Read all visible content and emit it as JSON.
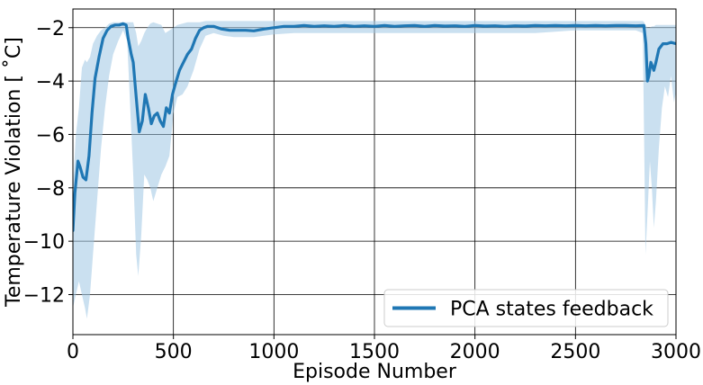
{
  "chart_data": {
    "type": "line",
    "title": "",
    "xlabel": "Episode Number",
    "ylabel": "Temperature Violation [$^\\circ$C]",
    "ylabel_display": "Temperature Violation [ ˚C]",
    "xlim": [
      0,
      3000
    ],
    "ylim": [
      -13.5,
      -1.3
    ],
    "x_ticks": [
      0,
      500,
      1000,
      1500,
      2000,
      2500,
      3000
    ],
    "y_ticks": [
      -12,
      -10,
      -8,
      -6,
      -4,
      -2
    ],
    "x_tick_labels": [
      "0",
      "500",
      "1000",
      "1500",
      "2000",
      "2500",
      "3000"
    ],
    "y_tick_labels": [
      "−12",
      "−10",
      "−8",
      "−6",
      "−4",
      "−2"
    ],
    "grid": true,
    "legend_position": "lower-right",
    "series": [
      {
        "name": "PCA states feedback",
        "color": "#1f77b4",
        "band_color": "#9ec7e4",
        "points": [
          [
            0,
            -9.6
          ],
          [
            10,
            -8.2
          ],
          [
            25,
            -7.0
          ],
          [
            35,
            -7.2
          ],
          [
            50,
            -7.6
          ],
          [
            65,
            -7.7
          ],
          [
            80,
            -6.8
          ],
          [
            95,
            -5.2
          ],
          [
            110,
            -3.9
          ],
          [
            130,
            -3.1
          ],
          [
            150,
            -2.4
          ],
          [
            170,
            -2.1
          ],
          [
            190,
            -1.95
          ],
          [
            210,
            -1.9
          ],
          [
            230,
            -1.9
          ],
          [
            250,
            -1.85
          ],
          [
            265,
            -1.9
          ],
          [
            275,
            -2.4
          ],
          [
            290,
            -3.0
          ],
          [
            300,
            -3.3
          ],
          [
            315,
            -4.6
          ],
          [
            330,
            -5.9
          ],
          [
            345,
            -5.5
          ],
          [
            360,
            -4.5
          ],
          [
            375,
            -5.0
          ],
          [
            390,
            -5.6
          ],
          [
            405,
            -5.3
          ],
          [
            420,
            -5.2
          ],
          [
            435,
            -5.5
          ],
          [
            450,
            -5.7
          ],
          [
            465,
            -5.0
          ],
          [
            480,
            -5.2
          ],
          [
            495,
            -4.5
          ],
          [
            510,
            -4.1
          ],
          [
            530,
            -3.6
          ],
          [
            550,
            -3.3
          ],
          [
            570,
            -3.0
          ],
          [
            590,
            -2.8
          ],
          [
            610,
            -2.4
          ],
          [
            630,
            -2.1
          ],
          [
            650,
            -2.0
          ],
          [
            670,
            -1.95
          ],
          [
            700,
            -1.95
          ],
          [
            740,
            -2.05
          ],
          [
            780,
            -2.1
          ],
          [
            820,
            -2.1
          ],
          [
            860,
            -2.1
          ],
          [
            900,
            -2.12
          ],
          [
            950,
            -2.05
          ],
          [
            1000,
            -2.0
          ],
          [
            1050,
            -1.95
          ],
          [
            1100,
            -1.95
          ],
          [
            1150,
            -1.92
          ],
          [
            1200,
            -1.95
          ],
          [
            1250,
            -1.93
          ],
          [
            1300,
            -1.95
          ],
          [
            1350,
            -1.92
          ],
          [
            1400,
            -1.95
          ],
          [
            1450,
            -1.93
          ],
          [
            1500,
            -1.95
          ],
          [
            1550,
            -1.92
          ],
          [
            1600,
            -1.95
          ],
          [
            1650,
            -1.93
          ],
          [
            1700,
            -1.92
          ],
          [
            1750,
            -1.95
          ],
          [
            1800,
            -1.92
          ],
          [
            1850,
            -1.94
          ],
          [
            1900,
            -1.93
          ],
          [
            1950,
            -1.95
          ],
          [
            2000,
            -1.92
          ],
          [
            2050,
            -1.94
          ],
          [
            2100,
            -1.93
          ],
          [
            2150,
            -1.95
          ],
          [
            2200,
            -1.93
          ],
          [
            2250,
            -1.94
          ],
          [
            2300,
            -1.92
          ],
          [
            2350,
            -1.93
          ],
          [
            2400,
            -1.92
          ],
          [
            2450,
            -1.93
          ],
          [
            2500,
            -1.92
          ],
          [
            2550,
            -1.93
          ],
          [
            2600,
            -1.92
          ],
          [
            2650,
            -1.93
          ],
          [
            2700,
            -1.92
          ],
          [
            2750,
            -1.92
          ],
          [
            2800,
            -1.93
          ],
          [
            2840,
            -1.92
          ],
          [
            2850,
            -2.6
          ],
          [
            2858,
            -4.0
          ],
          [
            2865,
            -3.8
          ],
          [
            2875,
            -3.3
          ],
          [
            2890,
            -3.6
          ],
          [
            2900,
            -3.3
          ],
          [
            2915,
            -2.8
          ],
          [
            2935,
            -2.6
          ],
          [
            2955,
            -2.6
          ],
          [
            2975,
            -2.55
          ],
          [
            3000,
            -2.6
          ]
        ],
        "band": [
          [
            0,
            -8.0,
            -12.5
          ],
          [
            15,
            -6.0,
            -12.0
          ],
          [
            30,
            -5.0,
            -11.5
          ],
          [
            45,
            -3.5,
            -12.0
          ],
          [
            60,
            -3.2,
            -12.5
          ],
          [
            70,
            -3.3,
            -12.9
          ],
          [
            85,
            -3.1,
            -12.0
          ],
          [
            100,
            -2.6,
            -10.5
          ],
          [
            120,
            -2.3,
            -8.5
          ],
          [
            140,
            -2.1,
            -6.5
          ],
          [
            160,
            -2.0,
            -5.0
          ],
          [
            180,
            -1.85,
            -3.8
          ],
          [
            200,
            -1.8,
            -3.0
          ],
          [
            225,
            -1.8,
            -2.5
          ],
          [
            250,
            -1.8,
            -2.1
          ],
          [
            270,
            -1.8,
            -2.5
          ],
          [
            285,
            -1.8,
            -5.0
          ],
          [
            300,
            -1.8,
            -7.5
          ],
          [
            315,
            -2.2,
            -10.5
          ],
          [
            325,
            -2.7,
            -11.3
          ],
          [
            340,
            -2.5,
            -9.8
          ],
          [
            355,
            -2.2,
            -7.5
          ],
          [
            370,
            -2.0,
            -7.7
          ],
          [
            385,
            -1.85,
            -8.0
          ],
          [
            400,
            -1.8,
            -8.5
          ],
          [
            420,
            -1.85,
            -8.0
          ],
          [
            440,
            -1.9,
            -7.5
          ],
          [
            460,
            -2.2,
            -7.2
          ],
          [
            480,
            -2.1,
            -6.8
          ],
          [
            500,
            -2.0,
            -5.2
          ],
          [
            520,
            -1.9,
            -4.6
          ],
          [
            545,
            -1.85,
            -4.5
          ],
          [
            570,
            -1.8,
            -4.2
          ],
          [
            600,
            -1.8,
            -3.6
          ],
          [
            630,
            -1.8,
            -2.8
          ],
          [
            660,
            -1.75,
            -2.3
          ],
          [
            700,
            -1.75,
            -2.2
          ],
          [
            750,
            -1.75,
            -2.3
          ],
          [
            800,
            -1.75,
            -2.35
          ],
          [
            850,
            -1.75,
            -2.35
          ],
          [
            900,
            -1.75,
            -2.35
          ],
          [
            950,
            -1.75,
            -2.3
          ],
          [
            1000,
            -1.75,
            -2.25
          ],
          [
            1100,
            -1.75,
            -2.2
          ],
          [
            1200,
            -1.75,
            -2.2
          ],
          [
            1300,
            -1.75,
            -2.2
          ],
          [
            1400,
            -1.75,
            -2.2
          ],
          [
            1500,
            -1.75,
            -2.2
          ],
          [
            1600,
            -1.75,
            -2.2
          ],
          [
            1700,
            -1.75,
            -2.2
          ],
          [
            1800,
            -1.75,
            -2.2
          ],
          [
            1900,
            -1.75,
            -2.2
          ],
          [
            2000,
            -1.75,
            -2.2
          ],
          [
            2100,
            -1.75,
            -2.2
          ],
          [
            2200,
            -1.75,
            -2.2
          ],
          [
            2300,
            -1.75,
            -2.2
          ],
          [
            2400,
            -1.75,
            -2.15
          ],
          [
            2500,
            -1.75,
            -2.1
          ],
          [
            2600,
            -1.75,
            -2.1
          ],
          [
            2700,
            -1.75,
            -2.1
          ],
          [
            2800,
            -1.75,
            -2.1
          ],
          [
            2835,
            -1.75,
            -2.2
          ],
          [
            2842,
            -1.8,
            -6.5
          ],
          [
            2848,
            -1.9,
            -10.5
          ],
          [
            2858,
            -2.0,
            -9.0
          ],
          [
            2870,
            -2.0,
            -7.0
          ],
          [
            2880,
            -1.95,
            -8.0
          ],
          [
            2890,
            -1.95,
            -9.5
          ],
          [
            2900,
            -1.9,
            -8.5
          ],
          [
            2915,
            -1.9,
            -6.5
          ],
          [
            2930,
            -1.9,
            -5.0
          ],
          [
            2945,
            -1.9,
            -4.2
          ],
          [
            2960,
            -1.9,
            -4.6
          ],
          [
            2975,
            -1.9,
            -3.8
          ],
          [
            2990,
            -1.9,
            -4.8
          ],
          [
            3000,
            -1.9,
            -4.4
          ]
        ]
      }
    ]
  }
}
